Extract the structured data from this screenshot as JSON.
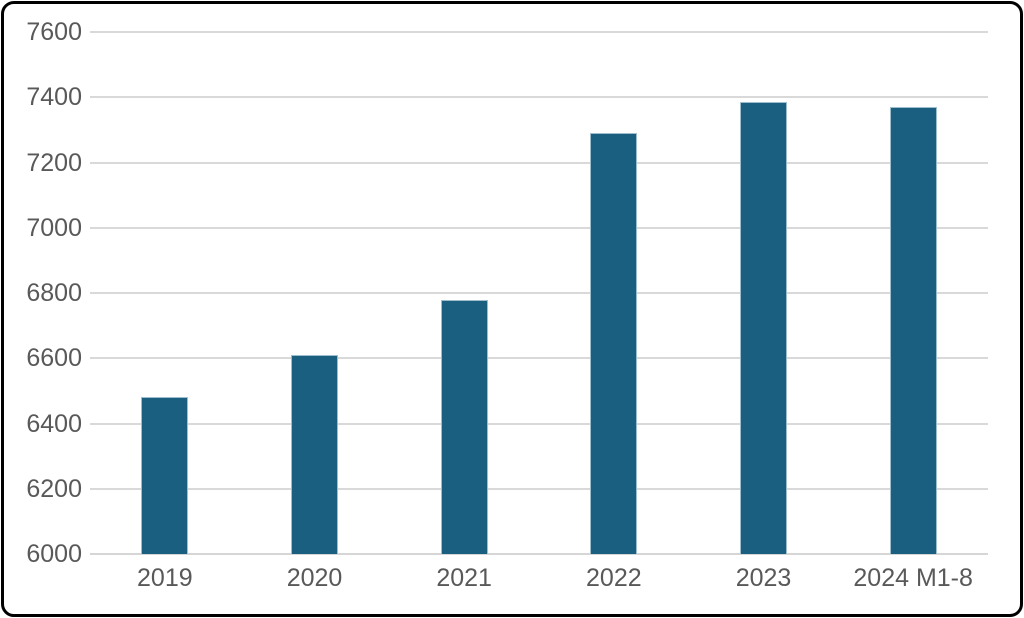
{
  "chart_data": {
    "type": "bar",
    "title": "",
    "xlabel": "",
    "ylabel": "",
    "categories": [
      "2019",
      "2020",
      "2021",
      "2022",
      "2023",
      "2024 M1-8"
    ],
    "values": [
      6480,
      6610,
      6780,
      7290,
      7385,
      7370
    ],
    "ylim": [
      6000,
      7600
    ],
    "yticks": [
      "6000",
      "6200",
      "6400",
      "6600",
      "6800",
      "7000",
      "7200",
      "7400",
      "7600"
    ],
    "grid": true,
    "legend": false,
    "colors": {
      "bar_fill": "#1A5F80",
      "bar_border": "#9FBECD",
      "gridline": "#D9D9D9",
      "axis_line": "#D6D6D6",
      "tick_label": "#595959",
      "frame_border": "#000000",
      "background": "#FFFFFF"
    }
  }
}
